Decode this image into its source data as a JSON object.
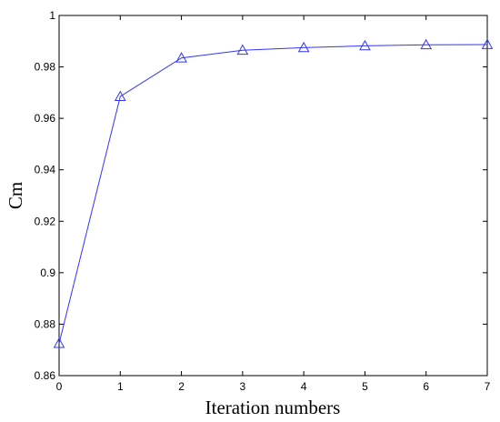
{
  "chart_data": {
    "type": "line",
    "title": "",
    "xlabel": "Iteration numbers",
    "ylabel": "Cm",
    "xlim": [
      0,
      7
    ],
    "ylim": [
      0.86,
      1.0
    ],
    "xticks": [
      0,
      1,
      2,
      3,
      4,
      5,
      6,
      7
    ],
    "xtick_labels": [
      "0",
      "1",
      "2",
      "3",
      "4",
      "5",
      "6",
      "7"
    ],
    "yticks": [
      0.86,
      0.88,
      0.9,
      0.92,
      0.94,
      0.96,
      0.98,
      1.0
    ],
    "ytick_labels": [
      "0.86",
      "0.88",
      "0.9",
      "0.92",
      "0.94",
      "0.96",
      "0.98",
      "1"
    ],
    "grid": false,
    "series": [
      {
        "x": [
          0,
          1,
          2,
          3,
          4,
          5,
          6,
          7
        ],
        "values": [
          0.8725,
          0.9685,
          0.9835,
          0.9865,
          0.9875,
          0.9882,
          0.9886,
          0.9887
        ],
        "color": "#3333ff",
        "marker": "triangle-open"
      }
    ]
  }
}
